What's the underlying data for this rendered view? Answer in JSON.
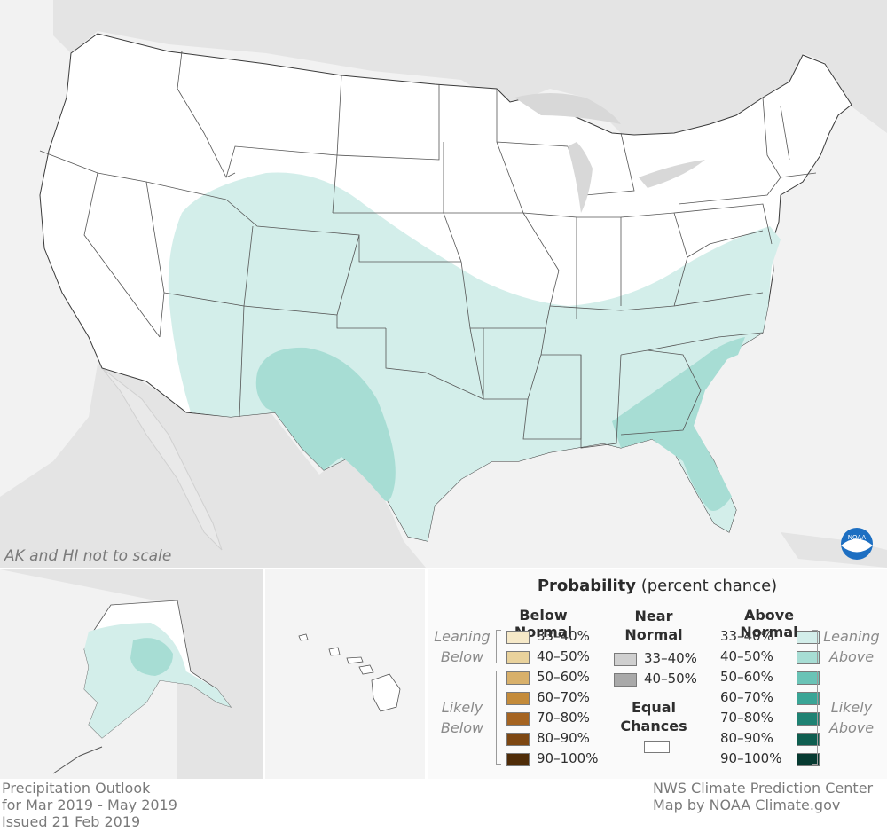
{
  "map_note": "AK and HI not to scale",
  "legend": {
    "title_bold": "Probability",
    "title_rest": " (percent chance)",
    "below_header": "Below Normal",
    "near_header_line1": "Near",
    "near_header_line2": "Normal",
    "above_header": "Above Normal",
    "leaning_below_1": "Leaning",
    "leaning_below_2": "Below",
    "likely_below_1": "Likely",
    "likely_below_2": "Below",
    "leaning_above_1": "Leaning",
    "leaning_above_2": "Above",
    "likely_above_1": "Likely",
    "likely_above_2": "Above",
    "equal_1": "Equal",
    "equal_2": "Chances",
    "below_rows": [
      {
        "label": "33–40%",
        "color": "#f6e9c8"
      },
      {
        "label": "40–50%",
        "color": "#e9d29c"
      },
      {
        "label": "50–60%",
        "color": "#d8b06a"
      },
      {
        "label": "60–70%",
        "color": "#c48b3a"
      },
      {
        "label": "70–80%",
        "color": "#a56421"
      },
      {
        "label": "80–90%",
        "color": "#7d4712"
      },
      {
        "label": "90–100%",
        "color": "#4f2c08"
      }
    ],
    "near_rows": [
      {
        "label": "33–40%",
        "color": "#cfcfcf"
      },
      {
        "label": "40–50%",
        "color": "#a9a9a9"
      }
    ],
    "above_rows": [
      {
        "label": "33–40%",
        "color": "#d3eeea"
      },
      {
        "label": "40–50%",
        "color": "#a7ddd4"
      },
      {
        "label": "50–60%",
        "color": "#6ac3b6"
      },
      {
        "label": "60–70%",
        "color": "#3aa596"
      },
      {
        "label": "70–80%",
        "color": "#1f8273"
      },
      {
        "label": "80–90%",
        "color": "#0f5e50"
      },
      {
        "label": "90–100%",
        "color": "#073a31"
      }
    ]
  },
  "footer": {
    "left_1": "Precipitation Outlook",
    "left_2": "for Mar 2019 - May 2019",
    "left_3": "Issued 21 Feb 2019",
    "right_1": "NWS Climate Prediction Center",
    "right_2": "Map by NOAA Climate.gov"
  },
  "logo_text": "NOAA",
  "colors": {
    "leaning_above": "#d3eeea",
    "likely_above_40_50": "#a7ddd4",
    "background_land": "#e6e6e6",
    "water": "#f2f2f2"
  }
}
